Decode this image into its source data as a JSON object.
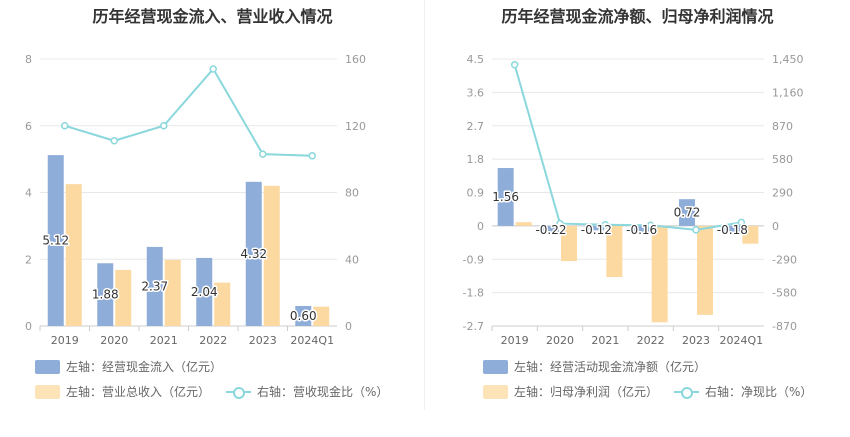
{
  "colors": {
    "bar1": "#8fadd9",
    "bar2": "#fcd9a0",
    "line": "#8ad7dc",
    "grid": "#e8e8e8",
    "axis": "#999999"
  },
  "chart_data": [
    {
      "type": "bar",
      "title": "历年经营现金流入、营业收入情况",
      "categories": [
        "2019",
        "2020",
        "2021",
        "2022",
        "2023",
        "2024Q1"
      ],
      "y_left_ticks": [
        "0",
        "2",
        "4",
        "6",
        "8"
      ],
      "y_right_ticks": [
        "0",
        "40",
        "80",
        "120",
        "160"
      ],
      "ylim_left": [
        0,
        8
      ],
      "ylim_right": [
        0,
        160
      ],
      "series": [
        {
          "name": "左轴：经营现金流入（亿元）",
          "values": [
            5.12,
            1.88,
            2.37,
            2.04,
            4.32,
            0.6
          ],
          "labels": [
            "5.12",
            "1.88",
            "2.37",
            "2.04",
            "4.32",
            "0.60"
          ]
        },
        {
          "name": "左轴：营业总收入（亿元）",
          "values": [
            4.25,
            1.68,
            1.98,
            1.3,
            4.2,
            0.58
          ]
        },
        {
          "name": "右轴：营收现金比（%）",
          "values": [
            120,
            111,
            120,
            154,
            103,
            102
          ]
        }
      ],
      "legend_rows": [
        [
          "左轴：经营现金流入（亿元）"
        ],
        [
          "左轴：营业总收入（亿元）",
          "右轴：营收现金比（%）"
        ]
      ]
    },
    {
      "type": "bar",
      "title": "历年经营现金流净额、归母净利润情况",
      "categories": [
        "2019",
        "2020",
        "2021",
        "2022",
        "2023",
        "2024Q1"
      ],
      "y_left_ticks": [
        "-2.7",
        "-1.8",
        "-0.9",
        "0",
        "0.9",
        "1.8",
        "2.7",
        "3.6",
        "4.5"
      ],
      "y_right_ticks": [
        "-870",
        "-580",
        "-290",
        "0",
        "290",
        "580",
        "870",
        "1,160",
        "1,450"
      ],
      "ylim_left": [
        -2.7,
        4.5
      ],
      "ylim_right": [
        -870,
        1450
      ],
      "series": [
        {
          "name": "左轴：经营活动现金流净额（亿元）",
          "values": [
            1.56,
            -0.22,
            -0.12,
            -0.16,
            0.72,
            -0.18
          ],
          "labels": [
            "1.56",
            "-0.22",
            "-0.12",
            "-0.16",
            "0.72",
            "-0.18"
          ]
        },
        {
          "name": "左轴：归母净利润（亿元）",
          "values": [
            0.1,
            -0.95,
            -1.38,
            -2.6,
            -2.4,
            -0.48
          ]
        },
        {
          "name": "右轴：净现比（%）",
          "values": [
            1400,
            20,
            10,
            5,
            -35,
            30
          ]
        }
      ],
      "legend_rows": [
        [
          "左轴：经营活动现金流净额（亿元）"
        ],
        [
          "左轴：归母净利润（亿元）",
          "右轴：净现比（%）"
        ]
      ]
    }
  ]
}
